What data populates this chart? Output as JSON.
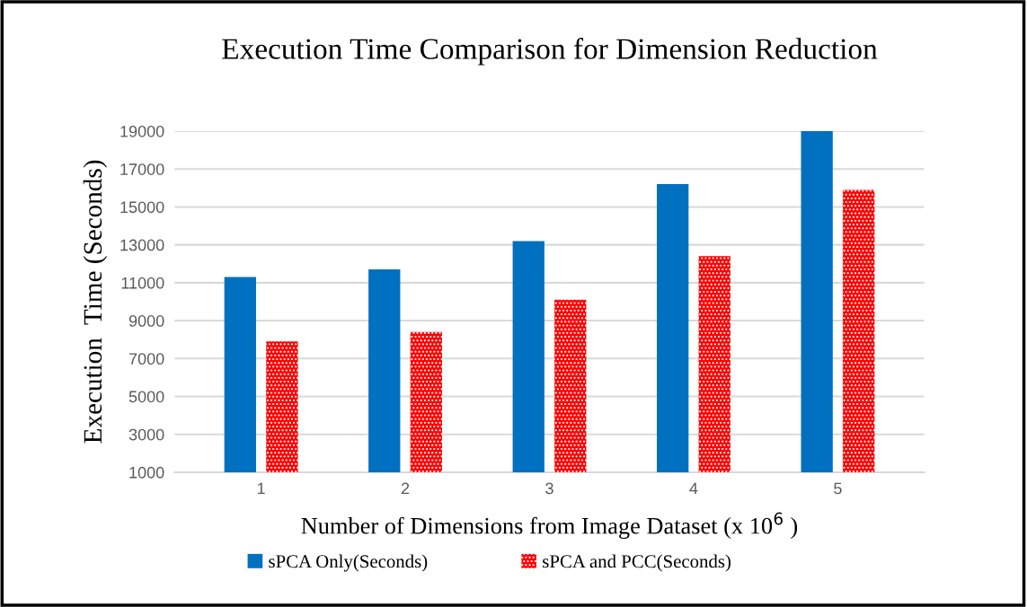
{
  "chart_data": {
    "type": "bar",
    "title": "Execution Time Comparison for Dimension Reduction",
    "xlabel": "Number of Dimensions from Image Dataset (x 10$^{6}$ )",
    "ylabel": "Execution  Time (Seconds)",
    "categories": [
      "1",
      "2",
      "3",
      "4",
      "5"
    ],
    "series": [
      {
        "name": "sPCA Only(Seconds)",
        "color": "#0070c0",
        "values": [
          11300,
          11700,
          13200,
          16200,
          19000
        ]
      },
      {
        "name": "sPCA and PCC(Seconds)",
        "color": "#ff0000",
        "values": [
          7900,
          8400,
          10100,
          12400,
          15900
        ]
      }
    ],
    "ylim": [
      1000,
      19000
    ],
    "yticks": [
      1000,
      3000,
      5000,
      7000,
      9000,
      11000,
      13000,
      15000,
      17000,
      19000
    ],
    "grid": "y",
    "legend": "bottom"
  }
}
